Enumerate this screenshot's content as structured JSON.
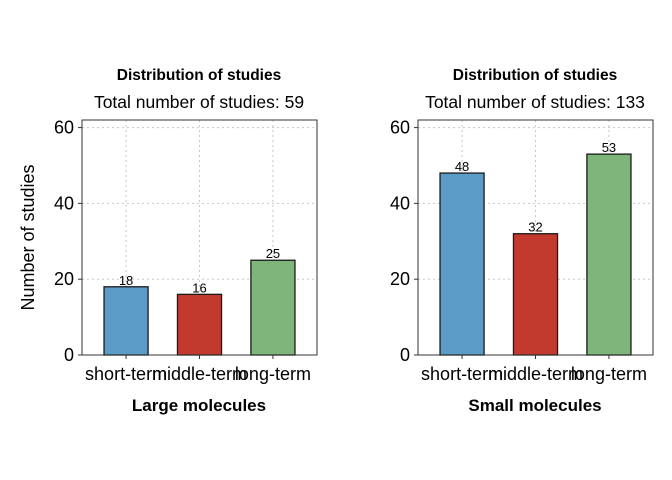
{
  "chart_data": [
    {
      "type": "bar",
      "title": "Distribution of studies",
      "subtitle": "Total number of studies: 59",
      "xlabel": "Large molecules",
      "ylabel": "Number of studies",
      "categories": [
        "short-term",
        "middle-term",
        "long-term"
      ],
      "values": [
        18,
        16,
        25
      ],
      "colors": [
        "#5b9bc8",
        "#c23a2e",
        "#7db57b"
      ],
      "ylim": [
        0,
        62
      ],
      "yticks": [
        0,
        20,
        40,
        60
      ],
      "grid": true
    },
    {
      "type": "bar",
      "title": "Distribution of studies",
      "subtitle": "Total number of studies: 133",
      "xlabel": "Small molecules",
      "ylabel": "",
      "categories": [
        "short-term",
        "middle-term",
        "long-term"
      ],
      "values": [
        48,
        32,
        53
      ],
      "colors": [
        "#5b9bc8",
        "#c23a2e",
        "#7db57b"
      ],
      "ylim": [
        0,
        62
      ],
      "yticks": [
        0,
        20,
        40,
        60
      ],
      "grid": true
    }
  ]
}
